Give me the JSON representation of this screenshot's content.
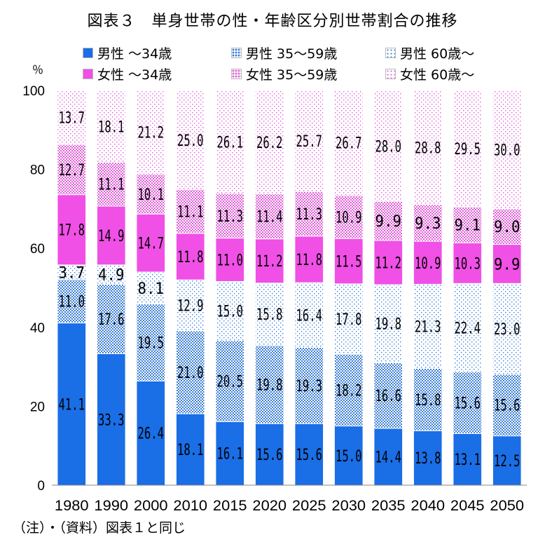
{
  "figure": {
    "title": "図表３　単身世帯の性・年齢区分別世帯割合の推移",
    "unit": "％",
    "note": "（注）・（資料）図表１と同じ"
  },
  "chart_data": {
    "type": "bar",
    "stacked": true,
    "title": "図表３　単身世帯の性・年齢区分別世帯割合の推移",
    "xlabel": "",
    "ylabel": "％",
    "ylim": [
      0,
      100
    ],
    "yticks": [
      0,
      20,
      40,
      60,
      80,
      100
    ],
    "grid": false,
    "legend_position": "top",
    "categories": [
      "1980",
      "1990",
      "2000",
      "2010",
      "2015",
      "2020",
      "2025",
      "2030",
      "2035",
      "2040",
      "2045",
      "2050"
    ],
    "series": [
      {
        "name": "男性 ～34歳",
        "color": "#1a6ee6",
        "pattern": "solid",
        "values": [
          41.1,
          33.3,
          26.4,
          18.1,
          16.1,
          15.6,
          15.6,
          15.0,
          14.4,
          13.8,
          13.1,
          12.5
        ]
      },
      {
        "name": "男性 35～59歳",
        "color": "#3d7fd6",
        "pattern": "dense-dots",
        "values": [
          11.0,
          17.6,
          19.5,
          21.0,
          20.5,
          19.8,
          19.3,
          18.2,
          16.6,
          15.8,
          15.6,
          15.6
        ]
      },
      {
        "name": "男性 60歳～",
        "color": "#3d7fd6",
        "pattern": "sparse-dots",
        "values": [
          3.7,
          4.9,
          8.1,
          12.9,
          15.0,
          15.8,
          16.4,
          17.8,
          19.8,
          21.3,
          22.4,
          23.0
        ]
      },
      {
        "name": "女性 ～34歳",
        "color": "#f050e6",
        "pattern": "solid",
        "values": [
          17.8,
          14.9,
          14.7,
          11.8,
          11.0,
          11.2,
          11.8,
          11.5,
          11.2,
          10.9,
          10.3,
          9.9
        ]
      },
      {
        "name": "女性 35～59歳",
        "color": "#e060d8",
        "pattern": "dense-dots",
        "values": [
          12.7,
          11.1,
          10.1,
          11.1,
          11.3,
          11.4,
          11.3,
          10.9,
          9.9,
          9.3,
          9.1,
          9.0
        ]
      },
      {
        "name": "女性 60歳～",
        "color": "#e060d8",
        "pattern": "sparse-dots",
        "values": [
          13.7,
          18.1,
          21.2,
          25.0,
          26.1,
          26.2,
          25.7,
          26.7,
          28.0,
          28.8,
          29.5,
          30.0
        ]
      }
    ],
    "data_labels": [
      [
        "41.1",
        "33.3",
        "26.4",
        "18.1",
        "16.1",
        "15.6",
        "15.6",
        "15.0",
        "14.4",
        "13.8",
        "13.1",
        "12.5"
      ],
      [
        "11.0",
        "17.6",
        "19.5",
        "21.0",
        "20.5",
        "19.8",
        "19.3",
        "18.2",
        "16.6",
        "15.8",
        "15.6",
        "15.6"
      ],
      [
        "3.7",
        "4.9",
        "8.1",
        "12.9",
        "15.0",
        "15.8",
        "16.4",
        "17.8",
        "19.8",
        "21.3",
        "22.4",
        "23.0"
      ],
      [
        "17.8",
        "14.9",
        "14.7",
        "11.8",
        "11.0",
        "11.2",
        "11.8",
        "11.5",
        "11.2",
        "10.9",
        "10.3",
        "9.9"
      ],
      [
        "12.7",
        "11.1",
        "10.1",
        "11.1",
        "11.3",
        "11.4",
        "11.3",
        "10.9",
        "9.9",
        "9.3",
        "9.1",
        "9.0"
      ],
      [
        "13.7",
        "18.1",
        "21.2",
        "25.0",
        "26.1",
        "26.2",
        "25.7",
        "26.7",
        "28.0",
        "28.8",
        "29.5",
        "30.0"
      ]
    ]
  }
}
